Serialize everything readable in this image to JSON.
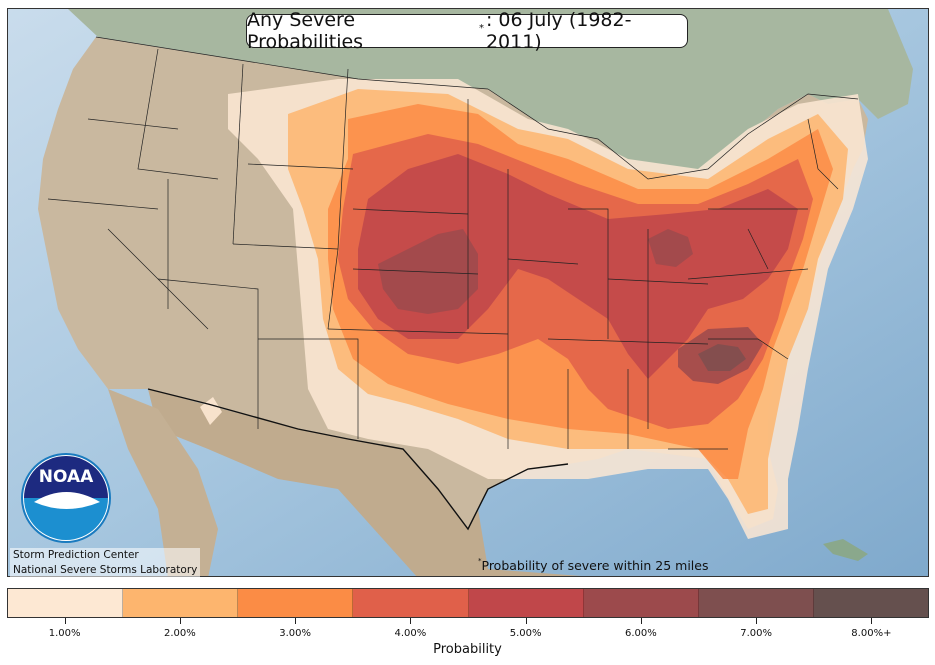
{
  "title": {
    "main": "Any Severe Probabilities",
    "marker": "*",
    "suffix": ": 06 July (1982-2011)"
  },
  "logo": {
    "text": "NOAA",
    "icon": "noaa-logo-icon"
  },
  "credits": {
    "line1": "Storm Prediction Center",
    "line2": "National Severe Storms Laboratory"
  },
  "footnote": {
    "marker": "*",
    "text": "Probability of severe within 25 miles"
  },
  "legend": {
    "title": "Probability",
    "bins": [
      {
        "label": "1.00%",
        "color": "#fde8d3"
      },
      {
        "label": "2.00%",
        "color": "#fdb56e"
      },
      {
        "label": "3.00%",
        "color": "#fb8c45"
      },
      {
        "label": "4.00%",
        "color": "#e0604a"
      },
      {
        "label": "5.00%",
        "color": "#c0474a"
      },
      {
        "label": "6.00%",
        "color": "#9c4a4c"
      },
      {
        "label": "7.00%",
        "color": "#7e4f4f"
      },
      {
        "label": "8.00%+",
        "color": "#65504e"
      }
    ]
  },
  "colors": {
    "ocean": "#9fc2dc",
    "land": "#c7b59c",
    "canada": "#a9b8a4",
    "mexico": "#c2ae93"
  }
}
